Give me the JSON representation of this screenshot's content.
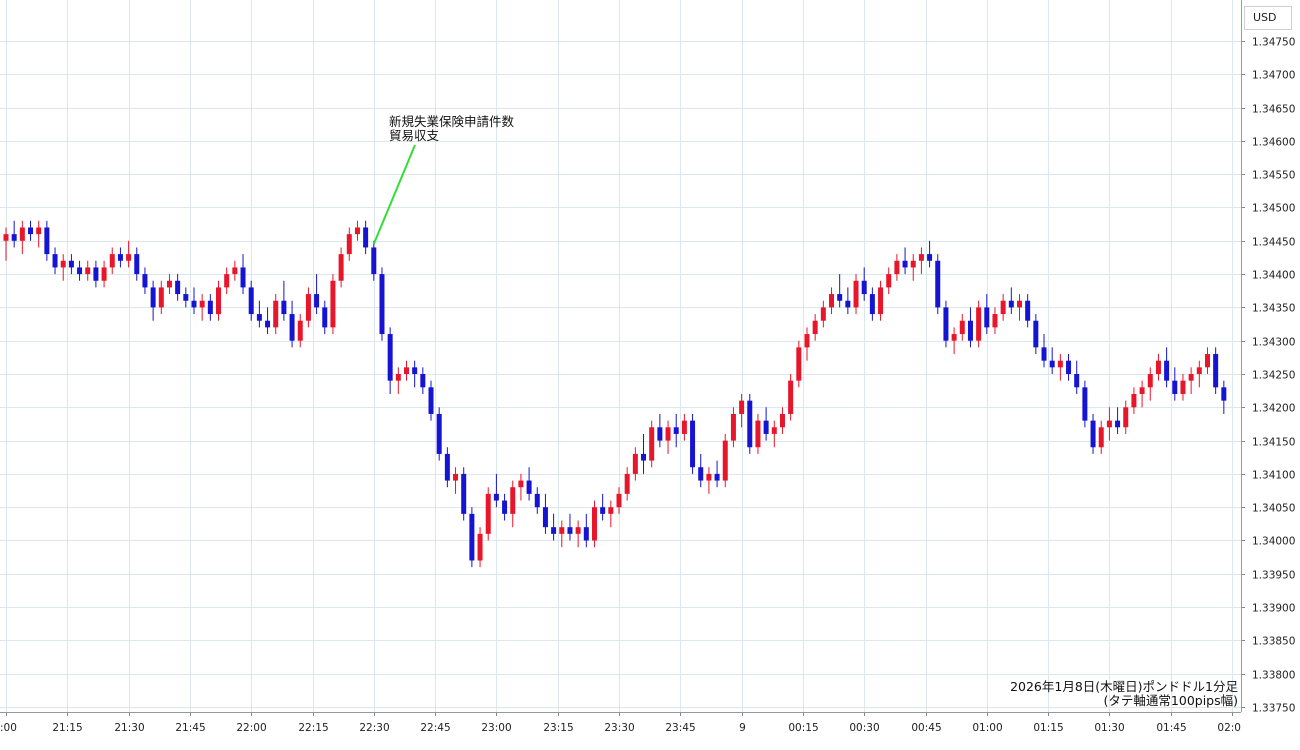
{
  "currency_label": "USD",
  "annotation": {
    "lines": [
      "新規失業保険申請件数",
      "貿易収支"
    ],
    "time": "22:30"
  },
  "caption": {
    "line1": "2026年1月8日(木曜日)ポンドドル1分足",
    "line2": "(タテ軸通常100pips幅)"
  },
  "colors": {
    "up": "#e8162b",
    "down": "#1414d2",
    "grid": "#dbe8ee",
    "annotation_line": "#33dd33"
  },
  "chart_data": {
    "type": "candlestick",
    "title": "2026年1月8日(木曜日)ポンドドル1分足",
    "subtitle": "(タテ軸通常100pips幅)",
    "y_axis": {
      "unit": "USD",
      "ylim": [
        1.3375,
        1.3478
      ],
      "ticks": [
        "1.34750",
        "1.34700",
        "1.34650",
        "1.34600",
        "1.34550",
        "1.34500",
        "1.34450",
        "1.34400",
        "1.34350",
        "1.34300",
        "1.34250",
        "1.34200",
        "1.34150",
        "1.34100",
        "1.34050",
        "1.34000",
        "1.33950",
        "1.33900",
        "1.33850",
        "1.33800",
        "1.33750"
      ]
    },
    "x_axis": {
      "ticks": [
        ":00",
        "21:15",
        "21:30",
        "21:45",
        "22:00",
        "22:15",
        "22:30",
        "22:45",
        "23:00",
        "23:15",
        "23:30",
        "23:45",
        "9",
        "00:15",
        "00:30",
        "00:45",
        "01:00",
        "01:15",
        "01:30",
        "01:45",
        "02:0"
      ]
    },
    "candles": [
      {
        "t": "21:00",
        "o": 1.3445,
        "h": 1.3447,
        "l": 1.3442,
        "c": 1.3446
      },
      {
        "t": "21:02",
        "o": 1.3446,
        "h": 1.3448,
        "l": 1.3444,
        "c": 1.3445
      },
      {
        "t": "21:04",
        "o": 1.3445,
        "h": 1.3448,
        "l": 1.3443,
        "c": 1.3447
      },
      {
        "t": "21:06",
        "o": 1.3447,
        "h": 1.3448,
        "l": 1.3445,
        "c": 1.3446
      },
      {
        "t": "21:08",
        "o": 1.3446,
        "h": 1.3448,
        "l": 1.3444,
        "c": 1.3447
      },
      {
        "t": "21:10",
        "o": 1.3447,
        "h": 1.3448,
        "l": 1.3442,
        "c": 1.3443
      },
      {
        "t": "21:12",
        "o": 1.3443,
        "h": 1.3444,
        "l": 1.344,
        "c": 1.3441
      },
      {
        "t": "21:14",
        "o": 1.3441,
        "h": 1.3443,
        "l": 1.3439,
        "c": 1.3442
      },
      {
        "t": "21:16",
        "o": 1.3442,
        "h": 1.3443,
        "l": 1.344,
        "c": 1.3441
      },
      {
        "t": "21:18",
        "o": 1.3441,
        "h": 1.3442,
        "l": 1.3439,
        "c": 1.344
      },
      {
        "t": "21:20",
        "o": 1.344,
        "h": 1.3442,
        "l": 1.3439,
        "c": 1.3441
      },
      {
        "t": "21:22",
        "o": 1.3441,
        "h": 1.3442,
        "l": 1.3438,
        "c": 1.3439
      },
      {
        "t": "21:24",
        "o": 1.3439,
        "h": 1.3442,
        "l": 1.3438,
        "c": 1.3441
      },
      {
        "t": "21:26",
        "o": 1.3441,
        "h": 1.3444,
        "l": 1.344,
        "c": 1.3443
      },
      {
        "t": "21:28",
        "o": 1.3443,
        "h": 1.3444,
        "l": 1.3441,
        "c": 1.3442
      },
      {
        "t": "21:30",
        "o": 1.3442,
        "h": 1.3445,
        "l": 1.3441,
        "c": 1.3443
      },
      {
        "t": "21:32",
        "o": 1.3443,
        "h": 1.3444,
        "l": 1.3439,
        "c": 1.344
      },
      {
        "t": "21:34",
        "o": 1.344,
        "h": 1.3441,
        "l": 1.3437,
        "c": 1.3438
      },
      {
        "t": "21:36",
        "o": 1.3438,
        "h": 1.3439,
        "l": 1.3433,
        "c": 1.3435
      },
      {
        "t": "21:38",
        "o": 1.3435,
        "h": 1.3439,
        "l": 1.3434,
        "c": 1.3438
      },
      {
        "t": "21:40",
        "o": 1.3438,
        "h": 1.344,
        "l": 1.3437,
        "c": 1.3439
      },
      {
        "t": "21:42",
        "o": 1.3439,
        "h": 1.344,
        "l": 1.3436,
        "c": 1.3437
      },
      {
        "t": "21:44",
        "o": 1.3437,
        "h": 1.3438,
        "l": 1.3435,
        "c": 1.3436
      },
      {
        "t": "21:46",
        "o": 1.3436,
        "h": 1.3438,
        "l": 1.3434,
        "c": 1.3435
      },
      {
        "t": "21:48",
        "o": 1.3435,
        "h": 1.3437,
        "l": 1.3433,
        "c": 1.3436
      },
      {
        "t": "21:50",
        "o": 1.3436,
        "h": 1.3437,
        "l": 1.3433,
        "c": 1.3434
      },
      {
        "t": "21:52",
        "o": 1.3434,
        "h": 1.3439,
        "l": 1.3433,
        "c": 1.3438
      },
      {
        "t": "21:54",
        "o": 1.3438,
        "h": 1.3441,
        "l": 1.3437,
        "c": 1.344
      },
      {
        "t": "21:56",
        "o": 1.344,
        "h": 1.3442,
        "l": 1.3439,
        "c": 1.3441
      },
      {
        "t": "21:58",
        "o": 1.3441,
        "h": 1.3443,
        "l": 1.3437,
        "c": 1.3438
      },
      {
        "t": "22:00",
        "o": 1.3438,
        "h": 1.3439,
        "l": 1.3433,
        "c": 1.3434
      },
      {
        "t": "22:02",
        "o": 1.3434,
        "h": 1.3436,
        "l": 1.3432,
        "c": 1.3433
      },
      {
        "t": "22:04",
        "o": 1.3433,
        "h": 1.3435,
        "l": 1.3431,
        "c": 1.3432
      },
      {
        "t": "22:06",
        "o": 1.3432,
        "h": 1.3437,
        "l": 1.3431,
        "c": 1.3436
      },
      {
        "t": "22:08",
        "o": 1.3436,
        "h": 1.3439,
        "l": 1.3433,
        "c": 1.3434
      },
      {
        "t": "22:10",
        "o": 1.3434,
        "h": 1.3436,
        "l": 1.3429,
        "c": 1.343
      },
      {
        "t": "22:12",
        "o": 1.343,
        "h": 1.3434,
        "l": 1.3429,
        "c": 1.3433
      },
      {
        "t": "22:14",
        "o": 1.3433,
        "h": 1.3438,
        "l": 1.3432,
        "c": 1.3437
      },
      {
        "t": "22:16",
        "o": 1.3437,
        "h": 1.344,
        "l": 1.3434,
        "c": 1.3435
      },
      {
        "t": "22:18",
        "o": 1.3435,
        "h": 1.3436,
        "l": 1.3431,
        "c": 1.3432
      },
      {
        "t": "22:20",
        "o": 1.3432,
        "h": 1.344,
        "l": 1.3431,
        "c": 1.3439
      },
      {
        "t": "22:22",
        "o": 1.3439,
        "h": 1.3444,
        "l": 1.3438,
        "c": 1.3443
      },
      {
        "t": "22:24",
        "o": 1.3443,
        "h": 1.3447,
        "l": 1.3442,
        "c": 1.3446
      },
      {
        "t": "22:26",
        "o": 1.3446,
        "h": 1.3448,
        "l": 1.3445,
        "c": 1.3447
      },
      {
        "t": "22:28",
        "o": 1.3447,
        "h": 1.3448,
        "l": 1.3443,
        "c": 1.3444
      },
      {
        "t": "22:30",
        "o": 1.3444,
        "h": 1.3445,
        "l": 1.3439,
        "c": 1.344
      },
      {
        "t": "22:32",
        "o": 1.344,
        "h": 1.3441,
        "l": 1.343,
        "c": 1.3431
      },
      {
        "t": "22:34",
        "o": 1.3431,
        "h": 1.3432,
        "l": 1.3422,
        "c": 1.3424
      },
      {
        "t": "22:36",
        "o": 1.3424,
        "h": 1.3426,
        "l": 1.3422,
        "c": 1.3425
      },
      {
        "t": "22:38",
        "o": 1.3425,
        "h": 1.3427,
        "l": 1.3424,
        "c": 1.3426
      },
      {
        "t": "22:40",
        "o": 1.3426,
        "h": 1.3427,
        "l": 1.3423,
        "c": 1.3425
      },
      {
        "t": "22:42",
        "o": 1.3425,
        "h": 1.3426,
        "l": 1.3422,
        "c": 1.3423
      },
      {
        "t": "22:44",
        "o": 1.3423,
        "h": 1.3424,
        "l": 1.3418,
        "c": 1.3419
      },
      {
        "t": "22:46",
        "o": 1.3419,
        "h": 1.342,
        "l": 1.3412,
        "c": 1.3413
      },
      {
        "t": "22:48",
        "o": 1.3413,
        "h": 1.3414,
        "l": 1.3408,
        "c": 1.3409
      },
      {
        "t": "22:50",
        "o": 1.3409,
        "h": 1.3411,
        "l": 1.3407,
        "c": 1.341
      },
      {
        "t": "22:52",
        "o": 1.341,
        "h": 1.3411,
        "l": 1.3403,
        "c": 1.3404
      },
      {
        "t": "22:54",
        "o": 1.3404,
        "h": 1.3405,
        "l": 1.3396,
        "c": 1.3397
      },
      {
        "t": "22:56",
        "o": 1.3397,
        "h": 1.3402,
        "l": 1.3396,
        "c": 1.3401
      },
      {
        "t": "22:58",
        "o": 1.3401,
        "h": 1.3408,
        "l": 1.34,
        "c": 1.3407
      },
      {
        "t": "23:00",
        "o": 1.3407,
        "h": 1.341,
        "l": 1.3405,
        "c": 1.3406
      },
      {
        "t": "23:02",
        "o": 1.3406,
        "h": 1.3407,
        "l": 1.3403,
        "c": 1.3404
      },
      {
        "t": "23:04",
        "o": 1.3404,
        "h": 1.3409,
        "l": 1.3402,
        "c": 1.3408
      },
      {
        "t": "23:06",
        "o": 1.3408,
        "h": 1.341,
        "l": 1.3406,
        "c": 1.3409
      },
      {
        "t": "23:08",
        "o": 1.3409,
        "h": 1.3411,
        "l": 1.3406,
        "c": 1.3407
      },
      {
        "t": "23:10",
        "o": 1.3407,
        "h": 1.3408,
        "l": 1.3404,
        "c": 1.3405
      },
      {
        "t": "23:12",
        "o": 1.3405,
        "h": 1.3407,
        "l": 1.3401,
        "c": 1.3402
      },
      {
        "t": "23:14",
        "o": 1.3402,
        "h": 1.3404,
        "l": 1.34,
        "c": 1.3401
      },
      {
        "t": "23:16",
        "o": 1.3401,
        "h": 1.3403,
        "l": 1.3399,
        "c": 1.3402
      },
      {
        "t": "23:18",
        "o": 1.3402,
        "h": 1.3404,
        "l": 1.34,
        "c": 1.3401
      },
      {
        "t": "23:20",
        "o": 1.3401,
        "h": 1.3403,
        "l": 1.3399,
        "c": 1.3402
      },
      {
        "t": "23:22",
        "o": 1.3402,
        "h": 1.3404,
        "l": 1.3399,
        "c": 1.34
      },
      {
        "t": "23:24",
        "o": 1.34,
        "h": 1.3406,
        "l": 1.3399,
        "c": 1.3405
      },
      {
        "t": "23:26",
        "o": 1.3405,
        "h": 1.3407,
        "l": 1.3403,
        "c": 1.3404
      },
      {
        "t": "23:28",
        "o": 1.3404,
        "h": 1.3406,
        "l": 1.3402,
        "c": 1.3405
      },
      {
        "t": "23:30",
        "o": 1.3405,
        "h": 1.3408,
        "l": 1.3404,
        "c": 1.3407
      },
      {
        "t": "23:32",
        "o": 1.3407,
        "h": 1.3411,
        "l": 1.3406,
        "c": 1.341
      },
      {
        "t": "23:34",
        "o": 1.341,
        "h": 1.3414,
        "l": 1.3409,
        "c": 1.3413
      },
      {
        "t": "23:36",
        "o": 1.3413,
        "h": 1.3416,
        "l": 1.341,
        "c": 1.3412
      },
      {
        "t": "23:38",
        "o": 1.3412,
        "h": 1.3418,
        "l": 1.3411,
        "c": 1.3417
      },
      {
        "t": "23:40",
        "o": 1.3417,
        "h": 1.3419,
        "l": 1.3414,
        "c": 1.3415
      },
      {
        "t": "23:42",
        "o": 1.3415,
        "h": 1.3418,
        "l": 1.3413,
        "c": 1.3417
      },
      {
        "t": "23:44",
        "o": 1.3417,
        "h": 1.3419,
        "l": 1.3414,
        "c": 1.3416
      },
      {
        "t": "23:46",
        "o": 1.3416,
        "h": 1.3419,
        "l": 1.3415,
        "c": 1.3418
      },
      {
        "t": "23:48",
        "o": 1.3418,
        "h": 1.3419,
        "l": 1.341,
        "c": 1.3411
      },
      {
        "t": "23:50",
        "o": 1.3411,
        "h": 1.3413,
        "l": 1.3408,
        "c": 1.3409
      },
      {
        "t": "23:52",
        "o": 1.3409,
        "h": 1.3411,
        "l": 1.3407,
        "c": 1.341
      },
      {
        "t": "23:54",
        "o": 1.341,
        "h": 1.3412,
        "l": 1.3408,
        "c": 1.3409
      },
      {
        "t": "23:56",
        "o": 1.3409,
        "h": 1.3416,
        "l": 1.3408,
        "c": 1.3415
      },
      {
        "t": "23:58",
        "o": 1.3415,
        "h": 1.342,
        "l": 1.3414,
        "c": 1.3419
      },
      {
        "t": "00:00",
        "o": 1.3419,
        "h": 1.3422,
        "l": 1.3417,
        "c": 1.3421
      },
      {
        "t": "00:02",
        "o": 1.3421,
        "h": 1.3422,
        "l": 1.3413,
        "c": 1.3414
      },
      {
        "t": "00:04",
        "o": 1.3414,
        "h": 1.3419,
        "l": 1.3413,
        "c": 1.3418
      },
      {
        "t": "00:06",
        "o": 1.3418,
        "h": 1.342,
        "l": 1.3415,
        "c": 1.3416
      },
      {
        "t": "00:08",
        "o": 1.3416,
        "h": 1.3418,
        "l": 1.3414,
        "c": 1.3417
      },
      {
        "t": "00:10",
        "o": 1.3417,
        "h": 1.342,
        "l": 1.3416,
        "c": 1.3419
      },
      {
        "t": "00:12",
        "o": 1.3419,
        "h": 1.3425,
        "l": 1.3418,
        "c": 1.3424
      },
      {
        "t": "00:14",
        "o": 1.3424,
        "h": 1.343,
        "l": 1.3423,
        "c": 1.3429
      },
      {
        "t": "00:16",
        "o": 1.3429,
        "h": 1.3432,
        "l": 1.3427,
        "c": 1.3431
      },
      {
        "t": "00:18",
        "o": 1.3431,
        "h": 1.3434,
        "l": 1.343,
        "c": 1.3433
      },
      {
        "t": "00:20",
        "o": 1.3433,
        "h": 1.3436,
        "l": 1.3432,
        "c": 1.3435
      },
      {
        "t": "00:22",
        "o": 1.3435,
        "h": 1.3438,
        "l": 1.3434,
        "c": 1.3437
      },
      {
        "t": "00:24",
        "o": 1.3437,
        "h": 1.344,
        "l": 1.3435,
        "c": 1.3436
      },
      {
        "t": "00:26",
        "o": 1.3436,
        "h": 1.3438,
        "l": 1.3434,
        "c": 1.3435
      },
      {
        "t": "00:28",
        "o": 1.3435,
        "h": 1.344,
        "l": 1.3434,
        "c": 1.3439
      },
      {
        "t": "00:30",
        "o": 1.3439,
        "h": 1.3441,
        "l": 1.3436,
        "c": 1.3437
      },
      {
        "t": "00:32",
        "o": 1.3437,
        "h": 1.3438,
        "l": 1.3433,
        "c": 1.3434
      },
      {
        "t": "00:34",
        "o": 1.3434,
        "h": 1.3439,
        "l": 1.3433,
        "c": 1.3438
      },
      {
        "t": "00:36",
        "o": 1.3438,
        "h": 1.3441,
        "l": 1.3437,
        "c": 1.344
      },
      {
        "t": "00:38",
        "o": 1.344,
        "h": 1.3443,
        "l": 1.3439,
        "c": 1.3442
      },
      {
        "t": "00:40",
        "o": 1.3442,
        "h": 1.3444,
        "l": 1.344,
        "c": 1.3441
      },
      {
        "t": "00:42",
        "o": 1.3441,
        "h": 1.3443,
        "l": 1.3439,
        "c": 1.3442
      },
      {
        "t": "00:44",
        "o": 1.3442,
        "h": 1.3444,
        "l": 1.344,
        "c": 1.3443
      },
      {
        "t": "00:46",
        "o": 1.3443,
        "h": 1.3445,
        "l": 1.3441,
        "c": 1.3442
      },
      {
        "t": "00:48",
        "o": 1.3442,
        "h": 1.3443,
        "l": 1.3434,
        "c": 1.3435
      },
      {
        "t": "00:50",
        "o": 1.3435,
        "h": 1.3436,
        "l": 1.3429,
        "c": 1.343
      },
      {
        "t": "00:52",
        "o": 1.343,
        "h": 1.3432,
        "l": 1.3428,
        "c": 1.3431
      },
      {
        "t": "00:54",
        "o": 1.3431,
        "h": 1.3434,
        "l": 1.343,
        "c": 1.3433
      },
      {
        "t": "00:56",
        "o": 1.3433,
        "h": 1.3435,
        "l": 1.3429,
        "c": 1.343
      },
      {
        "t": "00:58",
        "o": 1.343,
        "h": 1.3436,
        "l": 1.3429,
        "c": 1.3435
      },
      {
        "t": "01:00",
        "o": 1.3435,
        "h": 1.3437,
        "l": 1.3431,
        "c": 1.3432
      },
      {
        "t": "01:02",
        "o": 1.3432,
        "h": 1.3435,
        "l": 1.3431,
        "c": 1.3434
      },
      {
        "t": "01:04",
        "o": 1.3434,
        "h": 1.3437,
        "l": 1.3433,
        "c": 1.3436
      },
      {
        "t": "01:06",
        "o": 1.3436,
        "h": 1.3438,
        "l": 1.3434,
        "c": 1.3435
      },
      {
        "t": "01:08",
        "o": 1.3435,
        "h": 1.3437,
        "l": 1.3433,
        "c": 1.3436
      },
      {
        "t": "01:10",
        "o": 1.3436,
        "h": 1.3437,
        "l": 1.3432,
        "c": 1.3433
      },
      {
        "t": "01:12",
        "o": 1.3433,
        "h": 1.3434,
        "l": 1.3428,
        "c": 1.3429
      },
      {
        "t": "01:14",
        "o": 1.3429,
        "h": 1.3431,
        "l": 1.3426,
        "c": 1.3427
      },
      {
        "t": "01:16",
        "o": 1.3427,
        "h": 1.3429,
        "l": 1.3425,
        "c": 1.3426
      },
      {
        "t": "01:18",
        "o": 1.3426,
        "h": 1.3428,
        "l": 1.3424,
        "c": 1.3427
      },
      {
        "t": "01:20",
        "o": 1.3427,
        "h": 1.3428,
        "l": 1.3424,
        "c": 1.3425
      },
      {
        "t": "01:22",
        "o": 1.3425,
        "h": 1.3427,
        "l": 1.3422,
        "c": 1.3423
      },
      {
        "t": "01:24",
        "o": 1.3423,
        "h": 1.3424,
        "l": 1.3417,
        "c": 1.3418
      },
      {
        "t": "01:26",
        "o": 1.3418,
        "h": 1.3419,
        "l": 1.3413,
        "c": 1.3414
      },
      {
        "t": "01:28",
        "o": 1.3414,
        "h": 1.3418,
        "l": 1.3413,
        "c": 1.3417
      },
      {
        "t": "01:30",
        "o": 1.3417,
        "h": 1.342,
        "l": 1.3415,
        "c": 1.3418
      },
      {
        "t": "01:32",
        "o": 1.3418,
        "h": 1.342,
        "l": 1.3416,
        "c": 1.3417
      },
      {
        "t": "01:34",
        "o": 1.3417,
        "h": 1.3421,
        "l": 1.3416,
        "c": 1.342
      },
      {
        "t": "01:36",
        "o": 1.342,
        "h": 1.3423,
        "l": 1.3419,
        "c": 1.3422
      },
      {
        "t": "01:38",
        "o": 1.3422,
        "h": 1.3424,
        "l": 1.342,
        "c": 1.3423
      },
      {
        "t": "01:40",
        "o": 1.3423,
        "h": 1.3426,
        "l": 1.3421,
        "c": 1.3425
      },
      {
        "t": "01:42",
        "o": 1.3425,
        "h": 1.3428,
        "l": 1.3424,
        "c": 1.3427
      },
      {
        "t": "01:44",
        "o": 1.3427,
        "h": 1.3429,
        "l": 1.3423,
        "c": 1.3424
      },
      {
        "t": "01:46",
        "o": 1.3424,
        "h": 1.3426,
        "l": 1.3421,
        "c": 1.3422
      },
      {
        "t": "01:48",
        "o": 1.3422,
        "h": 1.3425,
        "l": 1.3421,
        "c": 1.3424
      },
      {
        "t": "01:50",
        "o": 1.3424,
        "h": 1.3426,
        "l": 1.3422,
        "c": 1.3425
      },
      {
        "t": "01:52",
        "o": 1.3425,
        "h": 1.3427,
        "l": 1.3423,
        "c": 1.3426
      },
      {
        "t": "01:54",
        "o": 1.3426,
        "h": 1.3429,
        "l": 1.3425,
        "c": 1.3428
      },
      {
        "t": "01:56",
        "o": 1.3428,
        "h": 1.3429,
        "l": 1.3422,
        "c": 1.3423
      },
      {
        "t": "01:58",
        "o": 1.3423,
        "h": 1.3424,
        "l": 1.3419,
        "c": 1.3421
      }
    ]
  }
}
